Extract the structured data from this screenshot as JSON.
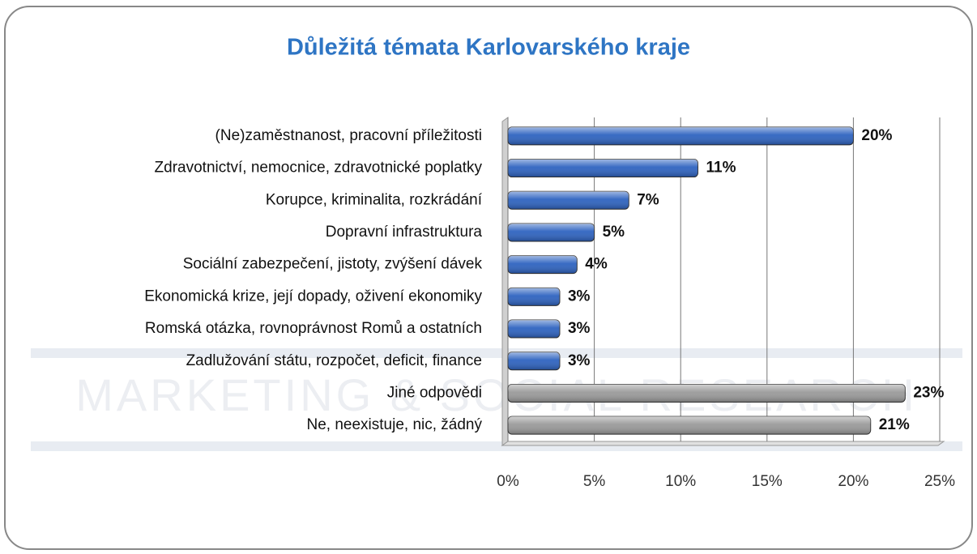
{
  "chart_data": {
    "type": "bar",
    "orientation": "horizontal",
    "title": "Důležitá témata Karlovarského kraje",
    "watermark": "MARKETING & SOCIAL RESEARCH",
    "categories": [
      "(Ne)zaměstnanost, pracovní příležitosti",
      "Zdravotnictví, nemocnice, zdravotnické poplatky",
      "Korupce, kriminalita, rozkrádání",
      "Dopravní infrastruktura",
      "Sociální zabezpečení, jistoty, zvýšení dávek",
      "Ekonomická krize, její dopady, oživení ekonomiky",
      "Romská otázka,  rovnoprávnost Romů a ostatních",
      "Zadlužování státu,  rozpočet, deficit, finance",
      "Jiné odpovědi",
      "Ne, neexistuje, nic, žádný"
    ],
    "values": [
      20,
      11,
      7,
      5,
      4,
      3,
      3,
      3,
      23,
      21
    ],
    "value_labels": [
      "20%",
      "11%",
      "7%",
      "5%",
      "4%",
      "3%",
      "3%",
      "3%",
      "23%",
      "21%"
    ],
    "colors": [
      "#2e63c0",
      "#2e63c0",
      "#2e63c0",
      "#2e63c0",
      "#2e63c0",
      "#2e63c0",
      "#2e63c0",
      "#2e63c0",
      "#9a9a9a",
      "#9a9a9a"
    ],
    "xlim": [
      0,
      25
    ],
    "xticks": [
      {
        "value": 0,
        "label": "0%"
      },
      {
        "value": 5,
        "label": "5%"
      },
      {
        "value": 10,
        "label": "10%"
      },
      {
        "value": 15,
        "label": "15%"
      },
      {
        "value": 20,
        "label": "20%"
      },
      {
        "value": 25,
        "label": "25%"
      }
    ],
    "grid": true
  }
}
